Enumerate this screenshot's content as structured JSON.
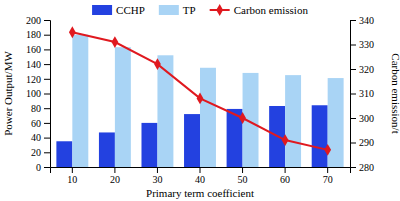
{
  "chart_data": {
    "type": "bar",
    "categories": [
      10,
      20,
      30,
      40,
      50,
      60,
      70
    ],
    "x_label": "Primary term coefficient",
    "y_label": "Power Output/MW",
    "y2_label": "Carbon emission/t",
    "ylim": [
      0,
      200
    ],
    "yticks": [
      0,
      20,
      40,
      60,
      80,
      100,
      120,
      140,
      160,
      180,
      200
    ],
    "y2lim": [
      280,
      340
    ],
    "y2ticks": [
      280,
      290,
      300,
      310,
      320,
      330,
      340
    ],
    "legend": "top",
    "series": [
      {
        "name": "CCHP",
        "type": "bar",
        "color": "#2341e0",
        "values": [
          35,
          47,
          60,
          72,
          79,
          83,
          84
        ]
      },
      {
        "name": "TP",
        "type": "bar",
        "color": "#a9d4f5",
        "values": [
          180,
          163,
          152,
          135,
          128,
          125,
          121
        ]
      },
      {
        "name": "Carbon emission",
        "type": "line",
        "axis": "y2",
        "color": "#e0191f",
        "marker": "diamond",
        "values": [
          335,
          331,
          322,
          308,
          300,
          291,
          287
        ]
      }
    ]
  }
}
